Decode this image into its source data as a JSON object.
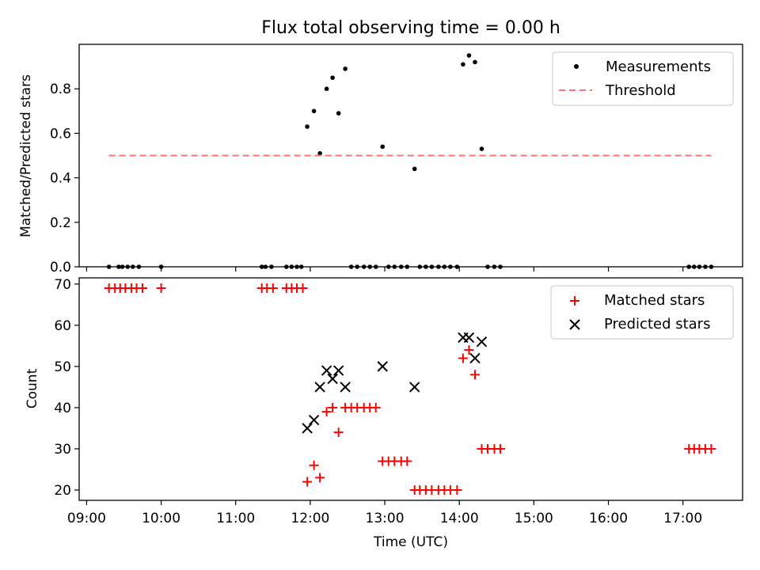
{
  "chart_data": [
    {
      "type": "scatter",
      "title": "Flux total observing time = 0.00 h",
      "xlabel": "",
      "ylabel": "Matched/Predicted stars",
      "xlim": [
        8.9,
        17.8
      ],
      "ylim": [
        0,
        1.0
      ],
      "yticks": [
        0.0,
        0.2,
        0.4,
        0.6,
        0.8
      ],
      "ytick_labels": [
        "0.0",
        "0.2",
        "0.4",
        "0.6",
        "0.8"
      ],
      "legend_position": "top-right",
      "series": [
        {
          "name": "Measurements",
          "marker": "dot",
          "color": "#000000",
          "x": [
            9.3,
            9.43,
            9.48,
            9.55,
            9.62,
            9.7,
            10.0,
            11.35,
            11.4,
            11.48,
            11.68,
            11.75,
            11.82,
            11.88,
            11.96,
            12.05,
            12.13,
            12.22,
            12.3,
            12.38,
            12.47,
            12.55,
            12.63,
            12.72,
            12.8,
            12.88,
            12.97,
            13.05,
            13.13,
            13.22,
            13.3,
            13.4,
            13.47,
            13.55,
            13.63,
            13.72,
            13.8,
            13.88,
            13.97,
            14.05,
            14.13,
            14.21,
            14.3,
            14.38,
            14.47,
            14.55,
            17.08,
            17.15,
            17.22,
            17.3,
            17.38
          ],
          "y": [
            0,
            0,
            0,
            0,
            0,
            0,
            0,
            0,
            0,
            0,
            0,
            0,
            0,
            0,
            0.63,
            0.7,
            0.51,
            0.8,
            0.85,
            0.69,
            0.89,
            0,
            0,
            0,
            0,
            0,
            0.54,
            0,
            0,
            0,
            0,
            0.44,
            0,
            0,
            0,
            0,
            0,
            0,
            0,
            0.91,
            0.95,
            0.92,
            0.53,
            0,
            0,
            0,
            0,
            0,
            0,
            0,
            0
          ]
        },
        {
          "name": "Threshold",
          "style": "dashed",
          "color": "#ff7070",
          "x": [
            9.3,
            17.38
          ],
          "y": [
            0.5,
            0.5
          ]
        }
      ]
    },
    {
      "type": "scatter",
      "title": "",
      "xlabel": "Time (UTC)",
      "ylabel": "Count",
      "xlim": [
        8.9,
        17.8
      ],
      "ylim": [
        17.5,
        71.5
      ],
      "yticks": [
        20,
        30,
        40,
        50,
        60,
        70
      ],
      "ytick_labels": [
        "20",
        "30",
        "40",
        "50",
        "60",
        "70"
      ],
      "xticks": [
        9,
        10,
        11,
        12,
        13,
        14,
        15,
        16,
        17
      ],
      "xtick_labels": [
        "09:00",
        "10:00",
        "11:00",
        "12:00",
        "13:00",
        "14:00",
        "15:00",
        "16:00",
        "17:00"
      ],
      "legend_position": "top-right",
      "series": [
        {
          "name": "Matched stars",
          "marker": "plus",
          "color": "#ff0000",
          "x": [
            9.3,
            9.38,
            9.45,
            9.52,
            9.6,
            9.67,
            9.75,
            10.0,
            11.35,
            11.42,
            11.5,
            11.68,
            11.75,
            11.82,
            11.9,
            11.96,
            12.05,
            12.13,
            12.22,
            12.3,
            12.38,
            12.47,
            12.55,
            12.63,
            12.72,
            12.8,
            12.88,
            12.97,
            13.05,
            13.13,
            13.22,
            13.3,
            13.4,
            13.47,
            13.55,
            13.63,
            13.72,
            13.8,
            13.88,
            13.97,
            14.05,
            14.13,
            14.21,
            14.3,
            14.38,
            14.47,
            14.55,
            17.08,
            17.15,
            17.22,
            17.3,
            17.38
          ],
          "y": [
            69,
            69,
            69,
            69,
            69,
            69,
            69,
            69,
            69,
            69,
            69,
            69,
            69,
            69,
            69,
            22,
            26,
            23,
            39,
            40,
            34,
            40,
            40,
            40,
            40,
            40,
            40,
            27,
            27,
            27,
            27,
            27,
            20,
            20,
            20,
            20,
            20,
            20,
            20,
            20,
            52,
            54,
            48,
            30,
            30,
            30,
            30,
            30,
            30,
            30,
            30,
            30
          ]
        },
        {
          "name": "Predicted stars",
          "marker": "x",
          "color": "#000000",
          "x": [
            11.96,
            12.05,
            12.13,
            12.22,
            12.3,
            12.38,
            12.47,
            12.97,
            13.4,
            14.05,
            14.13,
            14.21,
            14.3
          ],
          "y": [
            35,
            37,
            45,
            49,
            47,
            49,
            45,
            50,
            45,
            57,
            57,
            52,
            56
          ]
        }
      ]
    }
  ]
}
